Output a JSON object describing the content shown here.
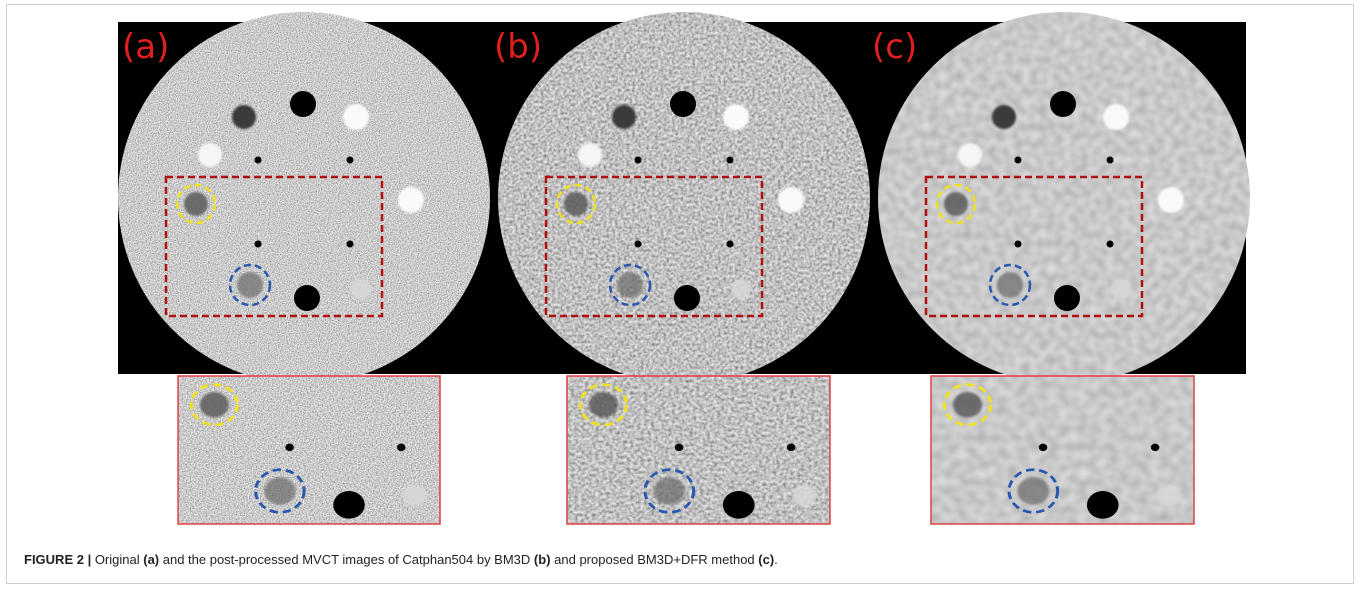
{
  "figure": {
    "panels": [
      {
        "label": "(a)"
      },
      {
        "label": "(b)"
      },
      {
        "label": "(c)"
      }
    ],
    "caption": {
      "parts": [
        {
          "text": "FIGURE 2 |",
          "bold": true
        },
        {
          "text": " Original ",
          "bold": false
        },
        {
          "text": "(a)",
          "bold": true
        },
        {
          "text": " and the post-processed MVCT images of Catphan504 by BM3D ",
          "bold": false
        },
        {
          "text": "(b)",
          "bold": true
        },
        {
          "text": " and proposed BM3D+DFR method ",
          "bold": false
        },
        {
          "text": "(c)",
          "bold": true
        },
        {
          "text": ".",
          "bold": false
        }
      ]
    }
  }
}
